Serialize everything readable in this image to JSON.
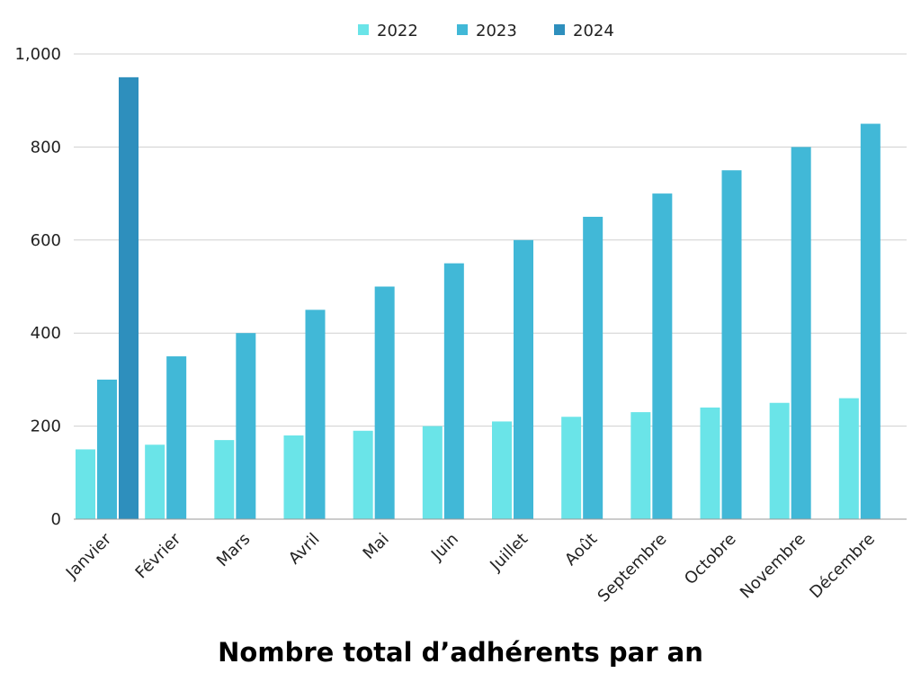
{
  "chart_data": {
    "type": "bar",
    "title": "Nombre total d’adhérents par an",
    "categories": [
      "Janvier",
      "Février",
      "Mars",
      "Avril",
      "Mai",
      "Juin",
      "Juillet",
      "Août",
      "Septembre",
      "Octobre",
      "Novembre",
      "Décembre"
    ],
    "series": [
      {
        "name": "2022",
        "color": "#6ae4e8",
        "values": [
          150,
          160,
          170,
          180,
          190,
          200,
          210,
          220,
          230,
          240,
          250,
          260
        ]
      },
      {
        "name": "2023",
        "color": "#41b8d7",
        "values": [
          300,
          350,
          400,
          450,
          500,
          550,
          600,
          650,
          700,
          750,
          800,
          850
        ]
      },
      {
        "name": "2024",
        "color": "#2e8fbd",
        "values": [
          950,
          null,
          null,
          null,
          null,
          null,
          null,
          null,
          null,
          null,
          null,
          null
        ]
      }
    ],
    "ylim": [
      0,
      1000
    ],
    "yticks": [
      0,
      200,
      400,
      600,
      800,
      1000
    ],
    "ytick_labels": [
      "0",
      "200",
      "400",
      "600",
      "800",
      "1,000"
    ],
    "grid": true,
    "legend": "top-center"
  }
}
